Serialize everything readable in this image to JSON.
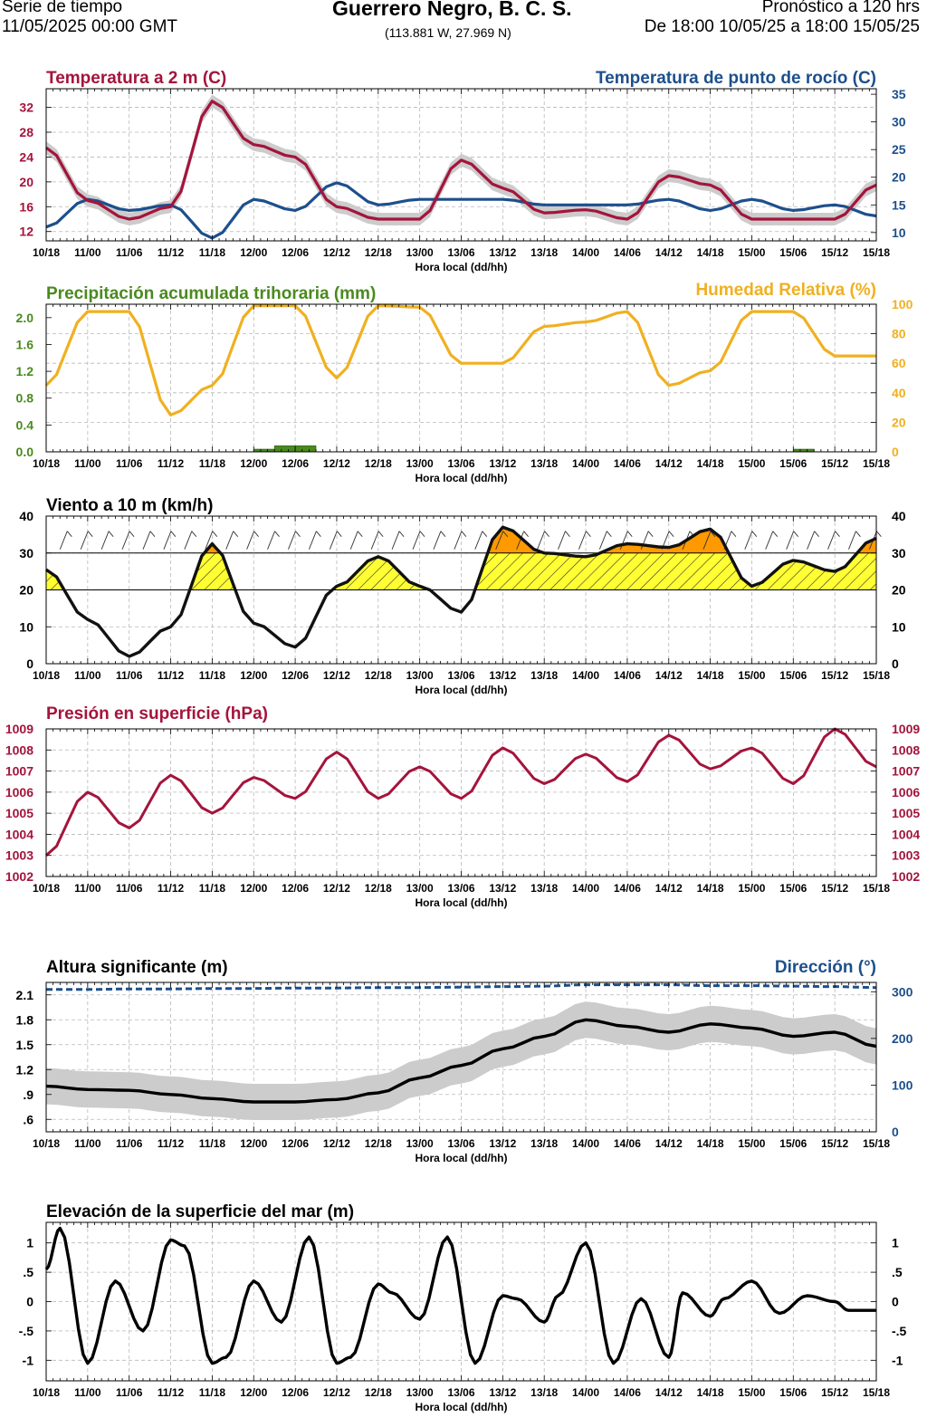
{
  "header": {
    "left_line1": "Serie de tiempo",
    "left_line2": "11/05/2025 00:00 GMT",
    "title": "Guerrero Negro, B. C. S.",
    "coords": "(113.881 W, 27.969 N)",
    "right_line1": "Pronóstico a 120 hrs",
    "right_line2": "De 18:00 10/05/25 a 18:00 15/05/25"
  },
  "colors": {
    "temp": "#a4143c",
    "dew": "#1d4f8c",
    "precip": "#4a8a1e",
    "rh": "#f0b020",
    "pressure": "#a4143c",
    "wave_dir": "#1d4f8c",
    "yellow": "#ffff33",
    "orange": "#ff9900",
    "band": "#cccccc"
  },
  "x_axis": {
    "label": "Hora local (dd/hh)",
    "ticks": [
      "10/18",
      "11/00",
      "11/06",
      "11/12",
      "11/18",
      "12/00",
      "12/06",
      "12/12",
      "12/18",
      "13/00",
      "13/06",
      "13/12",
      "13/18",
      "14/00",
      "14/06",
      "14/12",
      "14/18",
      "15/00",
      "15/06",
      "15/12",
      "15/18"
    ]
  },
  "chart_data": [
    {
      "id": "temp",
      "type": "line",
      "title_left": "Temperatura a 2 m (C)",
      "title_right": "Temperatura de punto de rocío (C)",
      "xlabel": "Hora local (dd/hh)",
      "left_ticks": [
        "12",
        "16",
        "20",
        "24",
        "28",
        "32"
      ],
      "right_ticks": [
        "10",
        "15",
        "20",
        "25",
        "30",
        "35"
      ],
      "ylim_left": [
        10.5,
        35
      ],
      "ylim_right": [
        8.5,
        36
      ],
      "hours": [
        0,
        6,
        12,
        18,
        24,
        30,
        36,
        42,
        48,
        54,
        60,
        66,
        72,
        78,
        84,
        90,
        96,
        102,
        108,
        114,
        120
      ],
      "series": [
        {
          "name": "Temperatura a 2 m",
          "axis": "left",
          "values": [
            25.5,
            17,
            14,
            16,
            33,
            26,
            24,
            16,
            14,
            14,
            23.5,
            19,
            15,
            15.5,
            14,
            21,
            19.5,
            14,
            14,
            14,
            19.5
          ]
        },
        {
          "name": "Temperatura de punto de rocío",
          "axis": "right",
          "values": [
            11,
            16,
            14,
            15,
            9,
            16,
            14,
            19,
            15,
            16,
            16,
            16,
            15,
            15,
            15,
            16,
            14,
            16,
            14,
            15,
            13
          ]
        }
      ]
    },
    {
      "id": "precip_rh",
      "type": "line",
      "title_left": "Precipitación acumulada trihoraria (mm)",
      "title_right": "Humedad Relativa (%)",
      "xlabel": "Hora local (dd/hh)",
      "left_ticks": [
        "0.0",
        "0.4",
        "0.8",
        "1.2",
        "1.6",
        "2.0"
      ],
      "right_ticks": [
        "0",
        "20",
        "40",
        "60",
        "80",
        "100"
      ],
      "ylim_left": [
        0,
        2.2
      ],
      "ylim_right": [
        0,
        100
      ],
      "hours": [
        0,
        6,
        12,
        18,
        24,
        30,
        36,
        42,
        48,
        54,
        60,
        66,
        72,
        78,
        84,
        90,
        96,
        102,
        108,
        114,
        120
      ],
      "series": [
        {
          "name": "Humedad Relativa",
          "axis": "right",
          "values": [
            45,
            95,
            95,
            25,
            45,
            99,
            99,
            50,
            99,
            98,
            60,
            60,
            85,
            88,
            95,
            45,
            55,
            95,
            95,
            65,
            65
          ]
        },
        {
          "name": "Precipitación acumulada trihoraria",
          "axis": "left",
          "type": "bar",
          "bars": [
            [
              30,
              0.04
            ],
            [
              33,
              0.09
            ],
            [
              36,
              0.09
            ],
            [
              108,
              0.04
            ]
          ]
        }
      ]
    },
    {
      "id": "wind",
      "type": "area",
      "title_left": "Viento a 10 m (km/h)",
      "xlabel": "Hora local (dd/hh)",
      "left_ticks": [
        "0",
        "10",
        "20",
        "30",
        "40"
      ],
      "right_ticks": [
        "0",
        "10",
        "20",
        "30",
        "40"
      ],
      "ylim": [
        0,
        40
      ],
      "thresholds": [
        20,
        30
      ],
      "hours": [
        0,
        6,
        12,
        18,
        24,
        30,
        36,
        42,
        48,
        54,
        60,
        66,
        72,
        78,
        84,
        90,
        96,
        102,
        108,
        114,
        120
      ],
      "values": [
        25.5,
        12,
        2,
        10,
        32.5,
        11,
        4.5,
        21,
        29,
        21,
        14,
        37,
        30,
        29,
        32.5,
        31.5,
        36.5,
        21,
        28,
        25,
        34
      ]
    },
    {
      "id": "pressure",
      "type": "line",
      "title_left": "Presión en superficie (hPa)",
      "xlabel": "Hora local (dd/hh)",
      "left_ticks": [
        "1002",
        "1003",
        "1004",
        "1005",
        "1006",
        "1007",
        "1008",
        "1009"
      ],
      "right_ticks": [
        "1002",
        "1003",
        "1004",
        "1005",
        "1006",
        "1007",
        "1008",
        "1009"
      ],
      "ylim": [
        1002,
        1009
      ],
      "hours": [
        0,
        6,
        12,
        18,
        24,
        30,
        36,
        42,
        48,
        54,
        60,
        66,
        72,
        78,
        84,
        90,
        96,
        102,
        108,
        114,
        120
      ],
      "values": [
        1003,
        1006,
        1004.3,
        1006.8,
        1005,
        1006.7,
        1005.7,
        1007.9,
        1005.7,
        1007.2,
        1005.7,
        1008.1,
        1006.4,
        1007.8,
        1006.5,
        1008.7,
        1007.1,
        1008.1,
        1006.4,
        1009,
        1007.2
      ]
    },
    {
      "id": "waves",
      "type": "line",
      "title_left": "Altura significante (m)",
      "title_right": "Dirección (°)",
      "xlabel": "Hora local (dd/hh)",
      "left_ticks": [
        ".6",
        ".9",
        "1.2",
        "1.5",
        "1.8",
        "2.1"
      ],
      "right_ticks": [
        "0",
        "100",
        "200",
        "300"
      ],
      "ylim_left": [
        0.45,
        2.25
      ],
      "ylim_right": [
        0,
        320
      ],
      "hours": [
        0,
        6,
        12,
        18,
        24,
        30,
        36,
        42,
        48,
        54,
        60,
        66,
        72,
        78,
        84,
        90,
        96,
        102,
        108,
        114,
        120
      ],
      "series": [
        {
          "name": "Altura significante",
          "axis": "left",
          "values": [
            1.0,
            0.96,
            0.95,
            0.9,
            0.85,
            0.81,
            0.81,
            0.84,
            0.92,
            1.1,
            1.25,
            1.45,
            1.6,
            1.8,
            1.72,
            1.65,
            1.75,
            1.7,
            1.6,
            1.65,
            1.48
          ]
        },
        {
          "name": "Dirección",
          "axis": "right",
          "values": [
            305,
            305,
            306,
            306,
            307,
            307,
            308,
            308,
            309,
            309,
            310,
            311,
            312,
            315,
            315,
            315,
            313,
            313,
            312,
            311,
            309
          ]
        }
      ]
    },
    {
      "id": "sea_level",
      "type": "line",
      "title_left": "Elevación de la superficie del mar (m)",
      "xlabel": "Hora local (dd/hh)",
      "left_ticks": [
        "-1",
        "-.5",
        "0",
        ".5",
        "1"
      ],
      "right_ticks": [
        "-1",
        "-.5",
        "0",
        ".5",
        "1"
      ],
      "ylim": [
        -1.35,
        1.35
      ],
      "hours": [
        0,
        2,
        6,
        10,
        14,
        18,
        20,
        24,
        26,
        30,
        34,
        38,
        42,
        44,
        48,
        50,
        54,
        58,
        62,
        66,
        68,
        72,
        74,
        78,
        82,
        86,
        90,
        92,
        96,
        98,
        102,
        106,
        110,
        114,
        116,
        120
      ],
      "values": [
        0.55,
        1.25,
        -1.05,
        0.35,
        -0.5,
        1.05,
        0.95,
        -1.05,
        -0.95,
        0.35,
        -0.35,
        1.1,
        -1.05,
        -0.95,
        0.3,
        0.15,
        -0.3,
        1.1,
        -1.05,
        0.1,
        0.05,
        -0.35,
        0.1,
        1.0,
        -1.05,
        0.05,
        -0.95,
        0.15,
        -0.25,
        0.05,
        0.35,
        -0.2,
        0.1,
        0.0,
        -0.15,
        -0.15
      ]
    }
  ]
}
